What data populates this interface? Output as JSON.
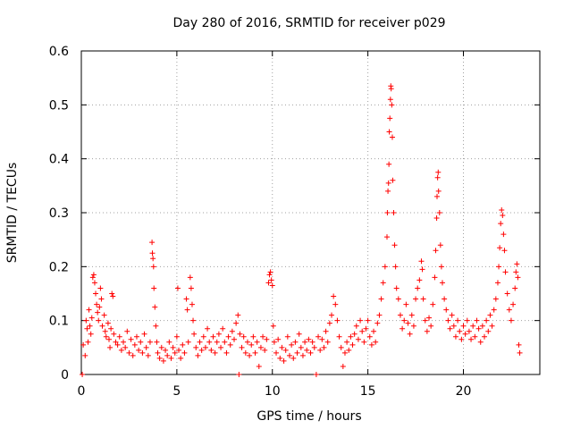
{
  "chart_data": {
    "type": "scatter",
    "title": "Day 280 of 2016, SRMTID for receiver p029",
    "xlabel": "GPS time / hours",
    "ylabel": "SRMTID / TECUs",
    "xlim": [
      0,
      24
    ],
    "ylim": [
      0,
      0.6
    ],
    "xticks": [
      0,
      5,
      10,
      15,
      20
    ],
    "xtick_labels": [
      "0",
      "5",
      "10",
      "15",
      "20"
    ],
    "yticks": [
      0,
      0.1,
      0.2,
      0.3,
      0.4,
      0.5,
      0.6
    ],
    "ytick_labels": [
      "0",
      "0.1",
      "0.2",
      "0.3",
      "0.4",
      "0.5",
      "0.6"
    ],
    "grid": true,
    "marker": "+",
    "color": "#ff0000",
    "series": [
      {
        "name": "SRMTID",
        "points": [
          [
            0.05,
            0.0
          ],
          [
            0.1,
            0.055
          ],
          [
            0.2,
            0.035
          ],
          [
            0.25,
            0.1
          ],
          [
            0.3,
            0.085
          ],
          [
            0.35,
            0.06
          ],
          [
            0.4,
            0.12
          ],
          [
            0.45,
            0.09
          ],
          [
            0.5,
            0.075
          ],
          [
            0.55,
            0.105
          ],
          [
            0.6,
            0.18
          ],
          [
            0.65,
            0.185
          ],
          [
            0.7,
            0.17
          ],
          [
            0.75,
            0.15
          ],
          [
            0.8,
            0.13
          ],
          [
            0.85,
            0.115
          ],
          [
            0.9,
            0.1
          ],
          [
            0.95,
            0.125
          ],
          [
            1.0,
            0.16
          ],
          [
            1.05,
            0.14
          ],
          [
            1.1,
            0.09
          ],
          [
            1.2,
            0.11
          ],
          [
            1.25,
            0.08
          ],
          [
            1.3,
            0.07
          ],
          [
            1.4,
            0.095
          ],
          [
            1.45,
            0.065
          ],
          [
            1.5,
            0.05
          ],
          [
            1.55,
            0.085
          ],
          [
            1.6,
            0.15
          ],
          [
            1.65,
            0.145
          ],
          [
            1.7,
            0.075
          ],
          [
            1.8,
            0.06
          ],
          [
            1.9,
            0.055
          ],
          [
            2.0,
            0.07
          ],
          [
            2.1,
            0.045
          ],
          [
            2.2,
            0.06
          ],
          [
            2.3,
            0.05
          ],
          [
            2.4,
            0.08
          ],
          [
            2.5,
            0.04
          ],
          [
            2.6,
            0.065
          ],
          [
            2.7,
            0.035
          ],
          [
            2.8,
            0.055
          ],
          [
            2.9,
            0.07
          ],
          [
            3.0,
            0.045
          ],
          [
            3.1,
            0.06
          ],
          [
            3.2,
            0.04
          ],
          [
            3.3,
            0.075
          ],
          [
            3.4,
            0.05
          ],
          [
            3.5,
            0.035
          ],
          [
            3.6,
            0.06
          ],
          [
            3.7,
            0.245
          ],
          [
            3.72,
            0.225
          ],
          [
            3.75,
            0.215
          ],
          [
            3.78,
            0.2
          ],
          [
            3.8,
            0.16
          ],
          [
            3.85,
            0.125
          ],
          [
            3.9,
            0.09
          ],
          [
            3.95,
            0.06
          ],
          [
            4.0,
            0.04
          ],
          [
            4.1,
            0.03
          ],
          [
            4.2,
            0.05
          ],
          [
            4.3,
            0.025
          ],
          [
            4.4,
            0.045
          ],
          [
            4.5,
            0.035
          ],
          [
            4.6,
            0.06
          ],
          [
            4.7,
            0.03
          ],
          [
            4.8,
            0.05
          ],
          [
            4.9,
            0.04
          ],
          [
            5.0,
            0.07
          ],
          [
            5.05,
            0.16
          ],
          [
            5.1,
            0.045
          ],
          [
            5.2,
            0.03
          ],
          [
            5.3,
            0.055
          ],
          [
            5.4,
            0.04
          ],
          [
            5.5,
            0.14
          ],
          [
            5.55,
            0.12
          ],
          [
            5.6,
            0.06
          ],
          [
            5.7,
            0.18
          ],
          [
            5.75,
            0.16
          ],
          [
            5.8,
            0.13
          ],
          [
            5.85,
            0.1
          ],
          [
            5.9,
            0.075
          ],
          [
            6.0,
            0.05
          ],
          [
            6.1,
            0.035
          ],
          [
            6.2,
            0.06
          ],
          [
            6.3,
            0.045
          ],
          [
            6.4,
            0.07
          ],
          [
            6.5,
            0.05
          ],
          [
            6.6,
            0.085
          ],
          [
            6.7,
            0.06
          ],
          [
            6.8,
            0.045
          ],
          [
            6.9,
            0.07
          ],
          [
            7.0,
            0.04
          ],
          [
            7.1,
            0.06
          ],
          [
            7.2,
            0.075
          ],
          [
            7.3,
            0.05
          ],
          [
            7.4,
            0.085
          ],
          [
            7.5,
            0.06
          ],
          [
            7.6,
            0.04
          ],
          [
            7.7,
            0.07
          ],
          [
            7.8,
            0.055
          ],
          [
            7.9,
            0.08
          ],
          [
            8.0,
            0.065
          ],
          [
            8.1,
            0.095
          ],
          [
            8.2,
            0.11
          ],
          [
            8.25,
            0.0
          ],
          [
            8.3,
            0.075
          ],
          [
            8.4,
            0.05
          ],
          [
            8.5,
            0.07
          ],
          [
            8.6,
            0.04
          ],
          [
            8.7,
            0.06
          ],
          [
            8.8,
            0.035
          ],
          [
            8.9,
            0.055
          ],
          [
            9.0,
            0.07
          ],
          [
            9.1,
            0.04
          ],
          [
            9.2,
            0.06
          ],
          [
            9.3,
            0.015
          ],
          [
            9.4,
            0.05
          ],
          [
            9.5,
            0.07
          ],
          [
            9.6,
            0.045
          ],
          [
            9.7,
            0.065
          ],
          [
            9.8,
            0.17
          ],
          [
            9.85,
            0.185
          ],
          [
            9.9,
            0.19
          ],
          [
            9.95,
            0.175
          ],
          [
            10.0,
            0.165
          ],
          [
            10.05,
            0.09
          ],
          [
            10.1,
            0.06
          ],
          [
            10.2,
            0.04
          ],
          [
            10.3,
            0.065
          ],
          [
            10.4,
            0.03
          ],
          [
            10.5,
            0.05
          ],
          [
            10.6,
            0.025
          ],
          [
            10.7,
            0.045
          ],
          [
            10.8,
            0.07
          ],
          [
            10.9,
            0.035
          ],
          [
            11.0,
            0.055
          ],
          [
            11.1,
            0.03
          ],
          [
            11.2,
            0.06
          ],
          [
            11.3,
            0.04
          ],
          [
            11.4,
            0.075
          ],
          [
            11.5,
            0.05
          ],
          [
            11.6,
            0.035
          ],
          [
            11.7,
            0.06
          ],
          [
            11.8,
            0.045
          ],
          [
            11.9,
            0.065
          ],
          [
            12.0,
            0.04
          ],
          [
            12.1,
            0.06
          ],
          [
            12.2,
            0.05
          ],
          [
            12.3,
            0.0
          ],
          [
            12.4,
            0.07
          ],
          [
            12.5,
            0.045
          ],
          [
            12.6,
            0.065
          ],
          [
            12.7,
            0.05
          ],
          [
            12.8,
            0.08
          ],
          [
            12.9,
            0.06
          ],
          [
            13.0,
            0.095
          ],
          [
            13.1,
            0.11
          ],
          [
            13.2,
            0.145
          ],
          [
            13.3,
            0.13
          ],
          [
            13.4,
            0.1
          ],
          [
            13.5,
            0.07
          ],
          [
            13.6,
            0.05
          ],
          [
            13.7,
            0.015
          ],
          [
            13.8,
            0.04
          ],
          [
            13.9,
            0.06
          ],
          [
            14.0,
            0.045
          ],
          [
            14.1,
            0.07
          ],
          [
            14.2,
            0.055
          ],
          [
            14.3,
            0.075
          ],
          [
            14.4,
            0.09
          ],
          [
            14.5,
            0.065
          ],
          [
            14.6,
            0.1
          ],
          [
            14.7,
            0.08
          ],
          [
            14.8,
            0.06
          ],
          [
            14.9,
            0.085
          ],
          [
            15.0,
            0.1
          ],
          [
            15.1,
            0.07
          ],
          [
            15.2,
            0.055
          ],
          [
            15.3,
            0.08
          ],
          [
            15.4,
            0.06
          ],
          [
            15.5,
            0.095
          ],
          [
            15.6,
            0.11
          ],
          [
            15.7,
            0.14
          ],
          [
            15.8,
            0.17
          ],
          [
            15.9,
            0.2
          ],
          [
            16.0,
            0.255
          ],
          [
            16.02,
            0.3
          ],
          [
            16.05,
            0.34
          ],
          [
            16.08,
            0.355
          ],
          [
            16.1,
            0.39
          ],
          [
            16.12,
            0.45
          ],
          [
            16.15,
            0.475
          ],
          [
            16.18,
            0.51
          ],
          [
            16.2,
            0.535
          ],
          [
            16.22,
            0.53
          ],
          [
            16.25,
            0.5
          ],
          [
            16.28,
            0.44
          ],
          [
            16.3,
            0.36
          ],
          [
            16.35,
            0.3
          ],
          [
            16.4,
            0.24
          ],
          [
            16.45,
            0.2
          ],
          [
            16.5,
            0.16
          ],
          [
            16.6,
            0.14
          ],
          [
            16.7,
            0.11
          ],
          [
            16.8,
            0.085
          ],
          [
            16.9,
            0.1
          ],
          [
            17.0,
            0.13
          ],
          [
            17.1,
            0.095
          ],
          [
            17.2,
            0.075
          ],
          [
            17.3,
            0.11
          ],
          [
            17.4,
            0.09
          ],
          [
            17.5,
            0.14
          ],
          [
            17.6,
            0.16
          ],
          [
            17.7,
            0.175
          ],
          [
            17.8,
            0.21
          ],
          [
            17.85,
            0.195
          ],
          [
            17.9,
            0.14
          ],
          [
            18.0,
            0.1
          ],
          [
            18.1,
            0.08
          ],
          [
            18.2,
            0.105
          ],
          [
            18.3,
            0.09
          ],
          [
            18.4,
            0.13
          ],
          [
            18.5,
            0.18
          ],
          [
            18.55,
            0.23
          ],
          [
            18.6,
            0.29
          ],
          [
            18.62,
            0.33
          ],
          [
            18.65,
            0.365
          ],
          [
            18.68,
            0.375
          ],
          [
            18.7,
            0.34
          ],
          [
            18.75,
            0.3
          ],
          [
            18.8,
            0.24
          ],
          [
            18.85,
            0.2
          ],
          [
            18.9,
            0.17
          ],
          [
            19.0,
            0.14
          ],
          [
            19.1,
            0.12
          ],
          [
            19.2,
            0.1
          ],
          [
            19.3,
            0.085
          ],
          [
            19.4,
            0.11
          ],
          [
            19.5,
            0.09
          ],
          [
            19.6,
            0.07
          ],
          [
            19.7,
            0.1
          ],
          [
            19.8,
            0.08
          ],
          [
            19.9,
            0.065
          ],
          [
            20.0,
            0.09
          ],
          [
            20.1,
            0.075
          ],
          [
            20.2,
            0.1
          ],
          [
            20.3,
            0.08
          ],
          [
            20.4,
            0.065
          ],
          [
            20.5,
            0.09
          ],
          [
            20.6,
            0.07
          ],
          [
            20.7,
            0.1
          ],
          [
            20.8,
            0.085
          ],
          [
            20.9,
            0.06
          ],
          [
            21.0,
            0.09
          ],
          [
            21.1,
            0.07
          ],
          [
            21.2,
            0.1
          ],
          [
            21.3,
            0.08
          ],
          [
            21.4,
            0.11
          ],
          [
            21.5,
            0.09
          ],
          [
            21.6,
            0.12
          ],
          [
            21.7,
            0.14
          ],
          [
            21.8,
            0.17
          ],
          [
            21.85,
            0.2
          ],
          [
            21.9,
            0.235
          ],
          [
            21.95,
            0.28
          ],
          [
            22.0,
            0.305
          ],
          [
            22.05,
            0.295
          ],
          [
            22.1,
            0.26
          ],
          [
            22.15,
            0.23
          ],
          [
            22.2,
            0.19
          ],
          [
            22.3,
            0.15
          ],
          [
            22.4,
            0.12
          ],
          [
            22.5,
            0.1
          ],
          [
            22.6,
            0.13
          ],
          [
            22.7,
            0.16
          ],
          [
            22.75,
            0.19
          ],
          [
            22.8,
            0.205
          ],
          [
            22.85,
            0.18
          ],
          [
            22.9,
            0.055
          ],
          [
            22.95,
            0.04
          ]
        ]
      }
    ]
  }
}
